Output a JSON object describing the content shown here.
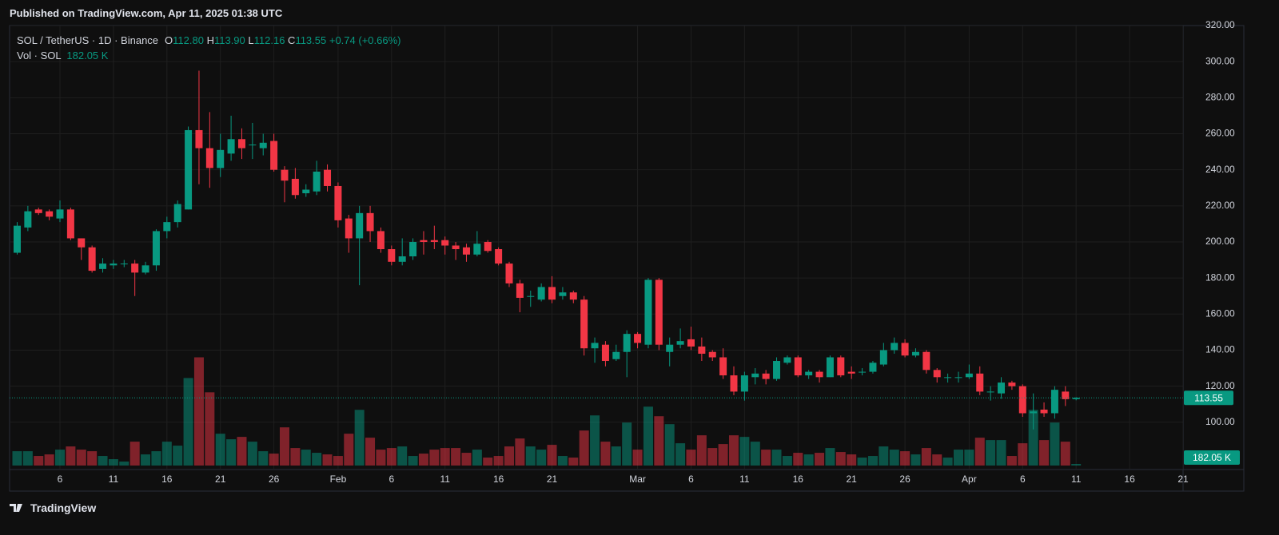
{
  "published": "Published on TradingView.com, Apr 11, 2025 01:38 UTC",
  "footer": "TradingView",
  "chart_data": {
    "type": "candlestick",
    "title": "SOL / TetherUS · 1D · Binance",
    "ohlc_prefixes": [
      "O",
      "H",
      "L",
      "C"
    ],
    "last_labels": {
      "open": "112.80",
      "high": "113.90",
      "low": "112.16",
      "close": "113.55",
      "change": "+0.74 (+0.66%)"
    },
    "volume_title": "Vol · SOL",
    "volume_last_label": "182.05 K",
    "x": [
      "2025-01-02",
      "2025-01-03",
      "2025-01-04",
      "2025-01-05",
      "2025-01-06",
      "2025-01-07",
      "2025-01-08",
      "2025-01-09",
      "2025-01-10",
      "2025-01-11",
      "2025-01-12",
      "2025-01-13",
      "2025-01-14",
      "2025-01-15",
      "2025-01-16",
      "2025-01-17",
      "2025-01-18",
      "2025-01-19",
      "2025-01-20",
      "2025-01-21",
      "2025-01-22",
      "2025-01-23",
      "2025-01-24",
      "2025-01-25",
      "2025-01-26",
      "2025-01-27",
      "2025-01-28",
      "2025-01-29",
      "2025-01-30",
      "2025-01-31",
      "2025-02-01",
      "2025-02-02",
      "2025-02-03",
      "2025-02-04",
      "2025-02-05",
      "2025-02-06",
      "2025-02-07",
      "2025-02-08",
      "2025-02-09",
      "2025-02-10",
      "2025-02-11",
      "2025-02-12",
      "2025-02-13",
      "2025-02-14",
      "2025-02-15",
      "2025-02-16",
      "2025-02-17",
      "2025-02-18",
      "2025-02-19",
      "2025-02-20",
      "2025-02-21",
      "2025-02-22",
      "2025-02-23",
      "2025-02-24",
      "2025-02-25",
      "2025-02-26",
      "2025-02-27",
      "2025-02-28",
      "2025-03-01",
      "2025-03-02",
      "2025-03-03",
      "2025-03-04",
      "2025-03-05",
      "2025-03-06",
      "2025-03-07",
      "2025-03-08",
      "2025-03-09",
      "2025-03-10",
      "2025-03-11",
      "2025-03-12",
      "2025-03-13",
      "2025-03-14",
      "2025-03-15",
      "2025-03-16",
      "2025-03-17",
      "2025-03-18",
      "2025-03-19",
      "2025-03-20",
      "2025-03-21",
      "2025-03-22",
      "2025-03-23",
      "2025-03-24",
      "2025-03-25",
      "2025-03-26",
      "2025-03-27",
      "2025-03-28",
      "2025-03-29",
      "2025-03-30",
      "2025-03-31",
      "2025-04-01",
      "2025-04-02",
      "2025-04-03",
      "2025-04-04",
      "2025-04-05",
      "2025-04-06",
      "2025-04-07",
      "2025-04-08",
      "2025-04-09",
      "2025-04-10",
      "2025-04-11"
    ],
    "open": [
      194,
      208,
      218,
      217,
      213,
      218,
      202,
      197,
      185,
      187,
      188,
      188,
      183,
      187,
      206,
      211,
      218,
      262,
      252,
      241,
      249,
      257,
      254,
      252,
      256,
      240,
      235,
      227,
      228,
      240,
      231,
      213,
      202,
      216,
      206,
      196,
      189,
      192,
      201,
      201,
      201,
      198,
      197,
      193,
      200,
      196,
      188,
      177,
      170,
      168,
      175,
      170,
      172,
      168,
      141,
      143,
      135,
      139,
      149,
      143,
      179,
      139,
      143,
      146,
      142,
      139,
      136,
      126,
      117,
      125,
      127,
      124,
      133,
      136,
      126,
      128,
      125,
      136,
      128,
      128,
      128,
      132,
      140,
      144,
      137,
      139,
      129,
      125,
      125,
      125,
      127,
      117,
      116,
      122,
      120,
      105,
      107,
      105,
      117,
      112.8
    ],
    "high": [
      211,
      220,
      219,
      218,
      223,
      219,
      202,
      198,
      191,
      190,
      190,
      190,
      189,
      207,
      214,
      223,
      264,
      295,
      272,
      260,
      270,
      263,
      266,
      260,
      260,
      242,
      241,
      232,
      245,
      243,
      233,
      215,
      220,
      220,
      208,
      198,
      202,
      202,
      206,
      209,
      203,
      200,
      199,
      206,
      201,
      197,
      189,
      179,
      173,
      177,
      181,
      175,
      173,
      170,
      147,
      145,
      143,
      151,
      150,
      180,
      180,
      147,
      152,
      153,
      147,
      140,
      141,
      131,
      128,
      130,
      129,
      136,
      137,
      137,
      129,
      129,
      137,
      137,
      131,
      130,
      134,
      144,
      147,
      146,
      141,
      140,
      130,
      127,
      128,
      132,
      131,
      120,
      125,
      123,
      121,
      116,
      111,
      120,
      120,
      113.9
    ],
    "low": [
      193,
      206,
      215,
      212,
      211,
      201,
      190,
      183,
      183,
      185,
      186,
      170,
      182,
      184,
      202,
      208,
      218,
      232,
      230,
      236,
      245,
      246,
      246,
      248,
      239,
      222,
      224,
      225,
      226,
      228,
      208,
      194,
      176,
      200,
      194,
      187,
      187,
      190,
      193,
      196,
      193,
      190,
      189,
      192,
      194,
      187,
      175,
      161,
      164,
      167,
      166,
      168,
      166,
      137,
      133,
      131,
      134,
      125,
      141,
      141,
      140,
      131,
      141,
      140,
      134,
      134,
      124,
      115,
      112,
      121,
      121,
      123,
      132,
      125,
      124,
      122,
      125,
      125,
      124,
      126,
      127,
      131,
      138,
      136,
      136,
      127,
      122,
      122,
      122,
      124,
      115,
      112,
      113,
      118,
      103,
      96,
      103,
      102,
      109,
      112.16
    ],
    "close": [
      209,
      217,
      216,
      214,
      218,
      202,
      197,
      184,
      188,
      188,
      188,
      183,
      187,
      206,
      211,
      221,
      262,
      252,
      241,
      251,
      257,
      252,
      254,
      255,
      240,
      234,
      226,
      229,
      239,
      231,
      212,
      202,
      216,
      206,
      196,
      189,
      192,
      200,
      200,
      200,
      198,
      196,
      193,
      199,
      195,
      188,
      177,
      169,
      170,
      175,
      168,
      172,
      168,
      141,
      144,
      134,
      139,
      149,
      144,
      179,
      143,
      143,
      145,
      142,
      138,
      136,
      126,
      117,
      126,
      127,
      124,
      134,
      136,
      126,
      128,
      125,
      136,
      126,
      127,
      128,
      133,
      140,
      144,
      137,
      139,
      129,
      125,
      125,
      125,
      127,
      117,
      117,
      122,
      120,
      105,
      106,
      105,
      118,
      112.8,
      113.55
    ],
    "volume": [
      1620,
      1620,
      1080,
      1260,
      1800,
      2160,
      1800,
      1620,
      1080,
      720,
      450,
      2700,
      1260,
      1620,
      2700,
      2250,
      9900,
      12240,
      8280,
      3600,
      2970,
      3240,
      2700,
      1620,
      1350,
      4320,
      1980,
      1800,
      1440,
      1260,
      1080,
      3600,
      6300,
      3150,
      1800,
      1980,
      2160,
      1080,
      1350,
      1800,
      1980,
      1980,
      1440,
      1800,
      900,
      1080,
      2160,
      3060,
      2160,
      1800,
      2340,
      1080,
      900,
      3960,
      5670,
      2700,
      2160,
      4860,
      1800,
      6660,
      5580,
      4680,
      2520,
      1800,
      3420,
      1980,
      2430,
      3420,
      3240,
      2700,
      1800,
      1800,
      1080,
      1440,
      1260,
      1440,
      1980,
      1530,
      1260,
      900,
      1080,
      2160,
      1800,
      1620,
      1260,
      1980,
      1260,
      900,
      1800,
      1800,
      3150,
      2880,
      2880,
      1080,
      2520,
      6300,
      2880,
      4860,
      2700,
      182.05
    ],
    "up_color": "#089981",
    "down_color": "#f23645",
    "xlim": [
      "2025-01-01",
      "2025-04-21"
    ],
    "xticks": [
      {
        "value": "2025-01-06",
        "label": "6"
      },
      {
        "value": "2025-01-11",
        "label": "11"
      },
      {
        "value": "2025-01-16",
        "label": "16"
      },
      {
        "value": "2025-01-21",
        "label": "21"
      },
      {
        "value": "2025-01-26",
        "label": "26"
      },
      {
        "value": "2025-02-01",
        "label": "Feb"
      },
      {
        "value": "2025-02-06",
        "label": "6"
      },
      {
        "value": "2025-02-11",
        "label": "11"
      },
      {
        "value": "2025-02-16",
        "label": "16"
      },
      {
        "value": "2025-02-21",
        "label": "21"
      },
      {
        "value": "2025-03-01",
        "label": "Mar"
      },
      {
        "value": "2025-03-06",
        "label": "6"
      },
      {
        "value": "2025-03-11",
        "label": "11"
      },
      {
        "value": "2025-03-16",
        "label": "16"
      },
      {
        "value": "2025-03-21",
        "label": "21"
      },
      {
        "value": "2025-03-26",
        "label": "26"
      },
      {
        "value": "2025-04-01",
        "label": "Apr"
      },
      {
        "value": "2025-04-06",
        "label": "6"
      },
      {
        "value": "2025-04-11",
        "label": "11"
      },
      {
        "value": "2025-04-16",
        "label": "16"
      },
      {
        "value": "2025-04-21",
        "label": "21"
      }
    ],
    "ylim": [
      74,
      320
    ],
    "yticks": [
      {
        "value": 100,
        "label": "100.00"
      },
      {
        "value": 120,
        "label": "120.00"
      },
      {
        "value": 140,
        "label": "140.00"
      },
      {
        "value": 160,
        "label": "160.00"
      },
      {
        "value": 180,
        "label": "180.00"
      },
      {
        "value": 200,
        "label": "200.00"
      },
      {
        "value": 220,
        "label": "220.00"
      },
      {
        "value": 240,
        "label": "240.00"
      },
      {
        "value": 260,
        "label": "260.00"
      },
      {
        "value": 280,
        "label": "280.00"
      },
      {
        "value": 300,
        "label": "300.00"
      },
      {
        "value": 320,
        "label": "320.00"
      }
    ],
    "volume_ylim": [
      0,
      14000
    ],
    "grid": true
  }
}
